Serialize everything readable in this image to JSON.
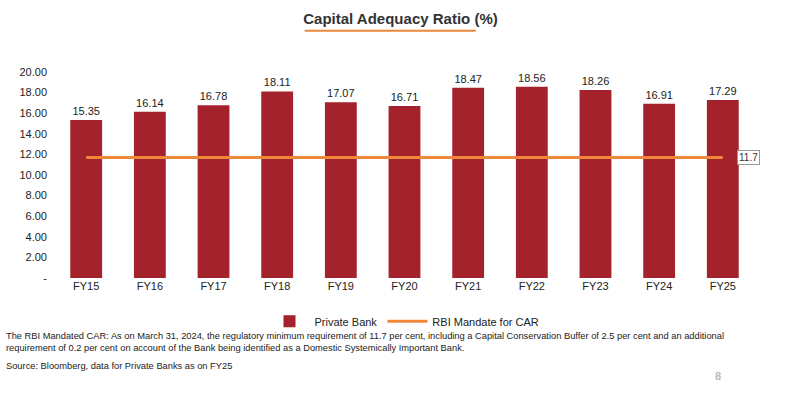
{
  "chart_data": {
    "type": "bar",
    "title": "Capital Adequacy Ratio (%)",
    "categories": [
      "FY15",
      "FY16",
      "FY17",
      "FY18",
      "FY19",
      "FY20",
      "FY21",
      "FY22",
      "FY23",
      "FY24",
      "FY25"
    ],
    "series": [
      {
        "name": "Private Bank",
        "type": "bar",
        "color": "#a3222b",
        "data_labels": true,
        "values": [
          15.35,
          16.14,
          16.78,
          18.11,
          17.07,
          16.71,
          18.47,
          18.56,
          18.26,
          16.91,
          17.29
        ]
      },
      {
        "name": "RBI Mandate for CAR",
        "type": "line",
        "color": "#f0883c",
        "line_style": "solid",
        "values": [
          11.7,
          11.7,
          11.7,
          11.7,
          11.7,
          11.7,
          11.7,
          11.7,
          11.7,
          11.7,
          11.7
        ]
      }
    ],
    "annotations": [
      {
        "text": "11.7",
        "category": "FY25",
        "y": 11.7
      }
    ],
    "footnotes": [
      "The RBI Mandated  CAR: As on March 31, 2024, the regulatory minimum requirement of 11.7 per cent, including a Capital Conservation Buffer of 2.5 per cent and an additional requirement of 0.2 per cent on account of the Bank being identified as a Domestic Systemically Important Bank.",
      "Source: Bloomberg, data for Private Banks as on FY25"
    ],
    "page_number": "8",
    "ylim": [
      0,
      20
    ],
    "yticks": [
      {
        "value": 0,
        "label": "-"
      },
      {
        "value": 2,
        "label": "2.00"
      },
      {
        "value": 4,
        "label": "4.00"
      },
      {
        "value": 6,
        "label": "6.00"
      },
      {
        "value": 8,
        "label": "8.00"
      },
      {
        "value": 10,
        "label": "10.00"
      },
      {
        "value": 12,
        "label": "12.00"
      },
      {
        "value": 14,
        "label": "14.00"
      },
      {
        "value": 16,
        "label": "16.00"
      },
      {
        "value": 18,
        "label": "18.00"
      },
      {
        "value": 20,
        "label": "20.00"
      }
    ],
    "grid": false,
    "legend": "bottom"
  }
}
